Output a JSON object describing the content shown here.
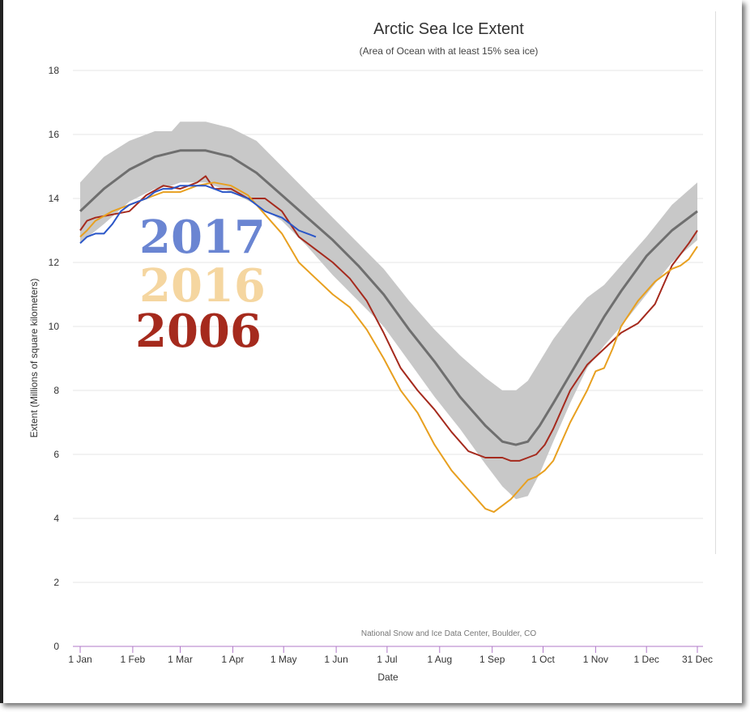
{
  "chart_data": {
    "type": "area",
    "title": "Arctic Sea Ice Extent",
    "subtitle": "(Area of Ocean with at least 15% sea ice)",
    "xlabel": "Date",
    "ylabel": "Extent (Millions of square kilometers)",
    "credit": "National Snow and Ice Data Center, Boulder, CO",
    "xlim": [
      1,
      365
    ],
    "ylim": [
      0,
      18
    ],
    "yticks": [
      0,
      2,
      4,
      6,
      8,
      10,
      12,
      14,
      16,
      18
    ],
    "xticks": [
      {
        "label": "1 Jan",
        "day": 1
      },
      {
        "label": "1 Feb",
        "day": 32
      },
      {
        "label": "1 Mar",
        "day": 60
      },
      {
        "label": "1 Apr",
        "day": 91
      },
      {
        "label": "1 May",
        "day": 121
      },
      {
        "label": "1 Jun",
        "day": 152
      },
      {
        "label": "1 Jul",
        "day": 182
      },
      {
        "label": "1 Aug",
        "day": 213
      },
      {
        "label": "1 Sep",
        "day": 244
      },
      {
        "label": "1 Oct",
        "day": 274
      },
      {
        "label": "1 Nov",
        "day": 305
      },
      {
        "label": "1 Dec",
        "day": 335
      },
      {
        "label": "31 Dec",
        "day": 365
      }
    ],
    "grid": true,
    "band": {
      "color": "#c8c8c8",
      "x": [
        1,
        15,
        30,
        45,
        55,
        60,
        75,
        90,
        105,
        120,
        135,
        150,
        165,
        180,
        195,
        210,
        225,
        240,
        250,
        258,
        265,
        272,
        280,
        290,
        300,
        310,
        320,
        335,
        350,
        365
      ],
      "upper": [
        14.5,
        15.3,
        15.8,
        16.1,
        16.1,
        16.4,
        16.4,
        16.2,
        15.8,
        15.0,
        14.2,
        13.4,
        12.6,
        11.8,
        10.8,
        9.9,
        9.1,
        8.4,
        8.0,
        8.0,
        8.3,
        8.9,
        9.6,
        10.3,
        10.9,
        11.3,
        11.9,
        12.8,
        13.8,
        14.5
      ],
      "lower": [
        12.6,
        13.2,
        13.9,
        14.3,
        14.4,
        14.5,
        14.5,
        14.2,
        13.8,
        13.3,
        12.5,
        11.6,
        10.8,
        10.0,
        8.9,
        7.8,
        6.8,
        5.7,
        5.0,
        4.6,
        4.7,
        5.4,
        6.4,
        7.6,
        8.7,
        9.4,
        10.0,
        11.0,
        12.0,
        12.7
      ]
    },
    "series": [
      {
        "color": "#6f6f6f",
        "x": [
          1,
          15,
          30,
          45,
          60,
          75,
          90,
          105,
          120,
          135,
          150,
          165,
          180,
          195,
          210,
          225,
          240,
          250,
          258,
          265,
          272,
          280,
          290,
          300,
          310,
          320,
          335,
          350,
          365
        ],
        "values": [
          13.6,
          14.3,
          14.9,
          15.3,
          15.5,
          15.5,
          15.3,
          14.8,
          14.1,
          13.4,
          12.7,
          11.9,
          11.0,
          9.9,
          8.9,
          7.8,
          6.9,
          6.4,
          6.3,
          6.4,
          6.9,
          7.6,
          8.5,
          9.4,
          10.3,
          11.1,
          12.2,
          13.0,
          13.6
        ]
      },
      {
        "name": "2006",
        "color": "#a52a1d",
        "x": [
          1,
          5,
          10,
          20,
          30,
          40,
          50,
          60,
          70,
          75,
          80,
          90,
          100,
          110,
          120,
          130,
          140,
          150,
          160,
          170,
          180,
          190,
          200,
          210,
          220,
          230,
          240,
          250,
          255,
          260,
          265,
          270,
          275,
          280,
          290,
          300,
          310,
          320,
          330,
          340,
          350,
          360,
          365
        ],
        "values": [
          13.0,
          13.3,
          13.4,
          13.5,
          13.6,
          14.1,
          14.4,
          14.3,
          14.5,
          14.7,
          14.3,
          14.3,
          14.0,
          14.0,
          13.6,
          12.8,
          12.4,
          12.0,
          11.5,
          10.8,
          9.8,
          8.7,
          8.0,
          7.4,
          6.7,
          6.1,
          5.9,
          5.9,
          5.8,
          5.8,
          5.9,
          6.0,
          6.3,
          6.8,
          8.0,
          8.8,
          9.3,
          9.8,
          10.1,
          10.7,
          11.9,
          12.6,
          13.0
        ]
      },
      {
        "name": "2016",
        "color": "#e8a020",
        "x": [
          1,
          5,
          10,
          20,
          30,
          40,
          50,
          60,
          70,
          80,
          90,
          100,
          110,
          120,
          130,
          140,
          150,
          160,
          170,
          180,
          190,
          200,
          210,
          220,
          230,
          240,
          245,
          250,
          255,
          260,
          265,
          270,
          275,
          280,
          285,
          290,
          300,
          305,
          310,
          315,
          320,
          330,
          340,
          350,
          355,
          360,
          365
        ],
        "values": [
          12.8,
          13.0,
          13.3,
          13.6,
          13.8,
          14.0,
          14.2,
          14.2,
          14.4,
          14.5,
          14.4,
          14.1,
          13.5,
          12.9,
          12.0,
          11.5,
          11.0,
          10.6,
          9.9,
          9.0,
          8.0,
          7.3,
          6.3,
          5.5,
          4.9,
          4.3,
          4.2,
          4.4,
          4.6,
          4.9,
          5.2,
          5.3,
          5.5,
          5.8,
          6.4,
          7.0,
          8.0,
          8.6,
          8.7,
          9.3,
          10.0,
          10.8,
          11.4,
          11.8,
          11.9,
          12.1,
          12.5
        ]
      },
      {
        "name": "2017",
        "color": "#2a56c8",
        "x": [
          1,
          5,
          10,
          15,
          20,
          25,
          30,
          35,
          40,
          45,
          50,
          55,
          60,
          65,
          70,
          75,
          80,
          85,
          90,
          95,
          100,
          105,
          110,
          115,
          120,
          125,
          130,
          135,
          140
        ],
        "values": [
          12.6,
          12.8,
          12.9,
          12.9,
          13.2,
          13.6,
          13.8,
          13.9,
          14.0,
          14.2,
          14.3,
          14.3,
          14.4,
          14.4,
          14.4,
          14.4,
          14.3,
          14.2,
          14.2,
          14.1,
          14.0,
          13.8,
          13.6,
          13.5,
          13.4,
          13.2,
          13.0,
          12.9,
          12.8
        ]
      }
    ]
  },
  "overlay_labels": [
    {
      "text": "2017",
      "color": "#6a85d2"
    },
    {
      "text": "2016",
      "color": "#f5d6a0"
    },
    {
      "text": "2006",
      "color": "#a52a1d"
    }
  ]
}
